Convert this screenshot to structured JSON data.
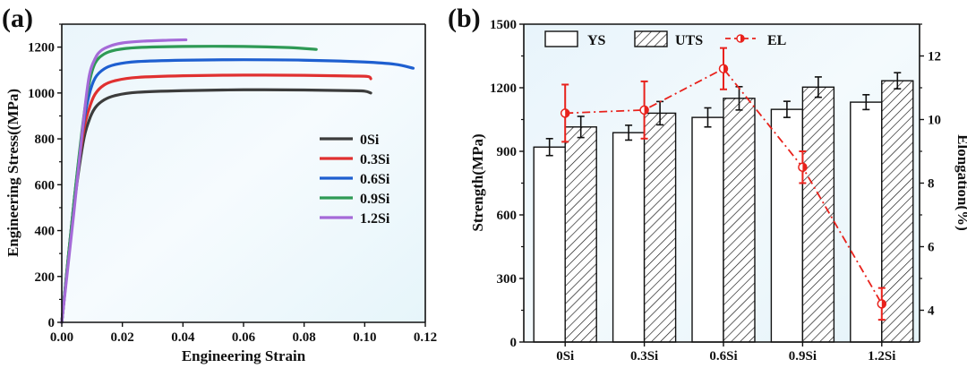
{
  "chart_data": [
    {
      "panel_label": "(a)",
      "type": "line",
      "title": "",
      "xlabel": "Engineering Strain",
      "ylabel": "Engineering Stress((MPa)",
      "xlim": [
        0,
        0.12
      ],
      "ylim": [
        0,
        1300
      ],
      "xticks": [
        "0.00",
        "0.02",
        "0.04",
        "0.06",
        "0.08",
        "0.10",
        "0.12"
      ],
      "yticks": [
        "0",
        "200",
        "400",
        "600",
        "800",
        "1000",
        "1200"
      ],
      "legend_position": "center-right",
      "series": [
        {
          "name": "0Si",
          "color": "#3c3c3c",
          "x": [
            0,
            0.004,
            0.007,
            0.009,
            0.011,
            0.014,
            0.018,
            0.025,
            0.04,
            0.06,
            0.08,
            0.095,
            0.1,
            0.102
          ],
          "y": [
            0,
            500,
            780,
            880,
            935,
            970,
            990,
            1003,
            1010,
            1014,
            1013,
            1010,
            1008,
            1000
          ]
        },
        {
          "name": "0.3Si",
          "color": "#e03030",
          "x": [
            0,
            0.004,
            0.007,
            0.009,
            0.011,
            0.014,
            0.018,
            0.025,
            0.04,
            0.06,
            0.08,
            0.095,
            0.101,
            0.102
          ],
          "y": [
            0,
            520,
            820,
            930,
            995,
            1035,
            1055,
            1068,
            1075,
            1078,
            1077,
            1074,
            1072,
            1062
          ]
        },
        {
          "name": "0.6Si",
          "color": "#1e5fd0",
          "x": [
            0,
            0.004,
            0.007,
            0.009,
            0.011,
            0.014,
            0.018,
            0.025,
            0.04,
            0.06,
            0.08,
            0.1,
            0.11,
            0.116
          ],
          "y": [
            0,
            520,
            850,
            990,
            1065,
            1105,
            1125,
            1137,
            1143,
            1145,
            1143,
            1135,
            1125,
            1108
          ]
        },
        {
          "name": "0.9Si",
          "color": "#2e9a55",
          "x": [
            0,
            0.004,
            0.007,
            0.009,
            0.011,
            0.014,
            0.018,
            0.025,
            0.04,
            0.06,
            0.075,
            0.084
          ],
          "y": [
            0,
            520,
            870,
            1040,
            1130,
            1170,
            1188,
            1198,
            1203,
            1203,
            1198,
            1190
          ]
        },
        {
          "name": "1.2Si",
          "color": "#a56ad8",
          "x": [
            0,
            0.004,
            0.007,
            0.009,
            0.011,
            0.013,
            0.016,
            0.02,
            0.027,
            0.035,
            0.041
          ],
          "y": [
            0,
            480,
            860,
            1070,
            1150,
            1185,
            1205,
            1218,
            1226,
            1230,
            1232
          ]
        }
      ]
    },
    {
      "panel_label": "(b)",
      "type": "bar",
      "title": "",
      "xlabel": "",
      "ylabel": "Strength(MPa)",
      "y2label": "Elongation(%)",
      "categories": [
        "0Si",
        "0.3Si",
        "0.6Si",
        "0.9Si",
        "1.2Si"
      ],
      "ylim": [
        0,
        1500
      ],
      "y2lim": [
        3,
        13
      ],
      "yticks": [
        "0",
        "300",
        "600",
        "900",
        "1200",
        "1500"
      ],
      "y2ticks": [
        "4",
        "6",
        "8",
        "10",
        "12"
      ],
      "legend_position": "top",
      "series": [
        {
          "name": "YS",
          "kind": "bar",
          "fill": "open",
          "values": [
            920,
            988,
            1060,
            1098,
            1132
          ],
          "errors": [
            40,
            35,
            45,
            38,
            35
          ]
        },
        {
          "name": "UTS",
          "kind": "bar",
          "fill": "hatched",
          "values": [
            1015,
            1080,
            1150,
            1203,
            1233
          ],
          "errors": [
            50,
            55,
            55,
            48,
            38
          ]
        },
        {
          "name": "EL",
          "kind": "line",
          "axis": "right",
          "color": "#e8221c",
          "linestyle": "dash-dot",
          "marker": "half-filled circle",
          "values": [
            10.2,
            10.3,
            11.6,
            8.5,
            4.2
          ],
          "errors": [
            0.9,
            0.9,
            0.65,
            0.5,
            0.5
          ]
        }
      ]
    }
  ]
}
